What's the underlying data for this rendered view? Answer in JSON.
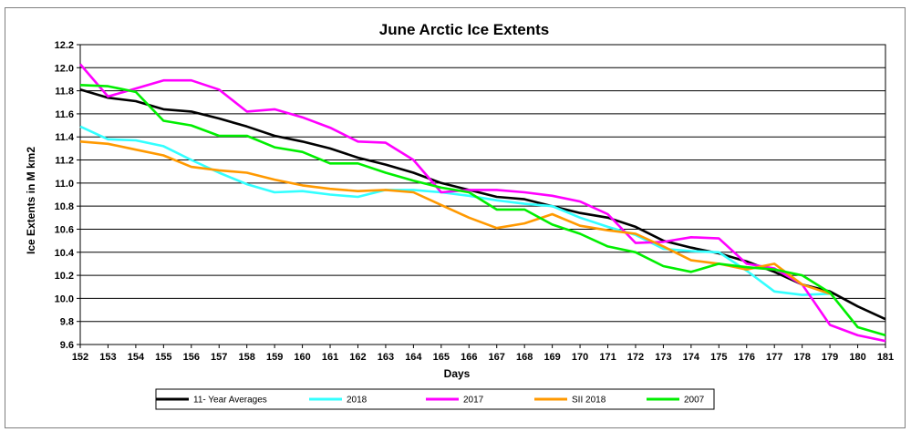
{
  "chart_data": {
    "type": "line",
    "title": "June Arctic Ice Extents",
    "xlabel": "Days",
    "ylabel": "Ice Extents in M km2",
    "x": [
      152,
      153,
      154,
      155,
      156,
      157,
      158,
      159,
      160,
      161,
      162,
      163,
      164,
      165,
      166,
      167,
      168,
      169,
      170,
      171,
      172,
      173,
      174,
      175,
      176,
      177,
      178,
      179,
      180,
      181
    ],
    "xlim": [
      152,
      181
    ],
    "ylim": [
      9.6,
      12.2
    ],
    "yticks": [
      "12.2",
      "12.0",
      "11.8",
      "11.6",
      "11.4",
      "11.2",
      "11.0",
      "10.8",
      "10.6",
      "10.4",
      "10.2",
      "10.0",
      "9.8",
      "9.6"
    ],
    "grid": true,
    "legend_position": "bottom",
    "series": [
      {
        "name": "11- Year Averages",
        "color": "#000000",
        "values": [
          11.81,
          11.74,
          11.71,
          11.64,
          11.62,
          11.56,
          11.49,
          11.41,
          11.36,
          11.3,
          11.22,
          11.16,
          11.09,
          11.0,
          10.94,
          10.88,
          10.86,
          10.8,
          10.74,
          10.7,
          10.62,
          10.5,
          10.44,
          10.39,
          10.32,
          10.23,
          10.12,
          10.06,
          9.93,
          9.82
        ]
      },
      {
        "name": "2018",
        "color": "#33ffff",
        "values": [
          11.49,
          11.38,
          11.37,
          11.32,
          11.2,
          11.09,
          10.99,
          10.92,
          10.93,
          10.9,
          10.88,
          10.94,
          10.94,
          10.92,
          10.89,
          10.85,
          10.82,
          10.8,
          10.7,
          10.62,
          10.55,
          10.43,
          10.41,
          10.4,
          10.24,
          10.06,
          10.03,
          10.04,
          null,
          null
        ]
      },
      {
        "name": "2017",
        "color": "#ff00ff",
        "values": [
          12.03,
          11.75,
          11.82,
          11.89,
          11.89,
          11.81,
          11.62,
          11.64,
          11.57,
          11.48,
          11.36,
          11.35,
          11.2,
          10.92,
          10.94,
          10.94,
          10.92,
          10.89,
          10.84,
          10.73,
          10.48,
          10.49,
          10.53,
          10.52,
          10.3,
          10.26,
          10.12,
          9.77,
          9.68,
          9.63
        ]
      },
      {
        "name": "SII 2018",
        "color": "#ff9900",
        "values": [
          11.36,
          11.34,
          11.29,
          11.24,
          11.14,
          11.11,
          11.09,
          11.03,
          10.98,
          10.95,
          10.93,
          10.94,
          10.92,
          10.81,
          10.7,
          10.61,
          10.65,
          10.73,
          10.63,
          10.59,
          10.56,
          10.45,
          10.33,
          10.3,
          10.25,
          10.3,
          10.12,
          10.04,
          null,
          null
        ]
      },
      {
        "name": "2007",
        "color": "#00ee00",
        "values": [
          11.85,
          11.84,
          11.79,
          11.54,
          11.5,
          11.41,
          11.41,
          11.31,
          11.27,
          11.17,
          11.17,
          11.09,
          11.02,
          10.96,
          10.92,
          10.77,
          10.77,
          10.64,
          10.56,
          10.45,
          10.4,
          10.28,
          10.23,
          10.3,
          10.27,
          10.25,
          10.2,
          10.05,
          9.75,
          9.68
        ]
      }
    ]
  }
}
